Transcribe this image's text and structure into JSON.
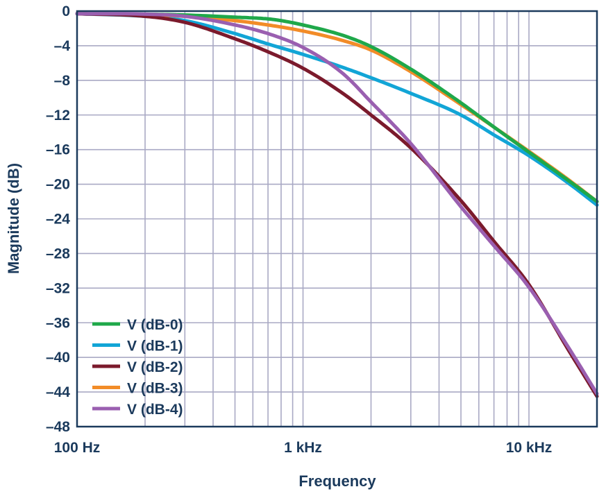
{
  "chart_data": {
    "type": "line",
    "title": "",
    "xlabel": "Frequency",
    "ylabel": "Magnitude (dB)",
    "xscale": "log",
    "xlim": [
      100,
      20000
    ],
    "ylim": [
      -48,
      0
    ],
    "grid": true,
    "x_ticks": [
      {
        "value": 100,
        "label": "100 Hz"
      },
      {
        "value": 1000,
        "label": "1 kHz"
      },
      {
        "value": 10000,
        "label": "10 kHz"
      }
    ],
    "y_ticks": [
      {
        "value": 0,
        "label": "0"
      },
      {
        "value": -4,
        "label": "–4"
      },
      {
        "value": -8,
        "label": "–8"
      },
      {
        "value": -12,
        "label": "–12"
      },
      {
        "value": -16,
        "label": "–16"
      },
      {
        "value": -20,
        "label": "–20"
      },
      {
        "value": -24,
        "label": "–24"
      },
      {
        "value": -28,
        "label": "–28"
      },
      {
        "value": -32,
        "label": "–32"
      },
      {
        "value": -36,
        "label": "–36"
      },
      {
        "value": -40,
        "label": "–40"
      },
      {
        "value": -44,
        "label": "–44"
      },
      {
        "value": -48,
        "label": "–48"
      }
    ],
    "legend_position": "bottom-left",
    "series": [
      {
        "name": "V (dB-0)",
        "color": "#1fa84a",
        "x": [
          100,
          200,
          300,
          500,
          700,
          800,
          1000,
          1500,
          2000,
          3000,
          5000,
          7000,
          10000,
          15000,
          20000
        ],
        "y": [
          -0.3,
          -0.35,
          -0.45,
          -0.7,
          -0.9,
          -1.1,
          -1.6,
          -2.8,
          -4.1,
          -6.7,
          -10.6,
          -13.4,
          -16.3,
          -19.6,
          -22.0
        ]
      },
      {
        "name": "V (dB-1)",
        "color": "#12a5d6",
        "x": [
          100,
          200,
          300,
          500,
          700,
          1000,
          1500,
          2000,
          3000,
          5000,
          7000,
          10000,
          15000,
          20000
        ],
        "y": [
          -0.3,
          -0.6,
          -1.1,
          -2.6,
          -3.8,
          -5.0,
          -6.5,
          -7.7,
          -9.5,
          -12.0,
          -14.3,
          -16.7,
          -19.9,
          -22.4
        ]
      },
      {
        "name": "V (dB-2)",
        "color": "#7b1a2c",
        "x": [
          100,
          200,
          300,
          500,
          700,
          1000,
          1500,
          2000,
          3000,
          5000,
          7000,
          10000,
          15000,
          20000
        ],
        "y": [
          -0.3,
          -0.6,
          -1.3,
          -3.2,
          -4.7,
          -6.6,
          -9.5,
          -12.0,
          -15.8,
          -21.9,
          -26.6,
          -31.6,
          -39.2,
          -44.5
        ]
      },
      {
        "name": "V (dB-3)",
        "color": "#f28c28",
        "x": [
          100,
          200,
          300,
          500,
          700,
          1000,
          1500,
          2000,
          3000,
          5000,
          7000,
          10000,
          15000,
          20000
        ],
        "y": [
          -0.3,
          -0.4,
          -0.6,
          -1.1,
          -1.6,
          -2.3,
          -3.4,
          -4.5,
          -7.0,
          -10.8,
          -13.4,
          -16.2,
          -19.5,
          -22.0
        ]
      },
      {
        "name": "V (dB-4)",
        "color": "#9a5fb0",
        "x": [
          100,
          200,
          300,
          500,
          700,
          1000,
          1500,
          2000,
          3000,
          5000,
          7000,
          10000,
          15000,
          20000
        ],
        "y": [
          -0.3,
          -0.35,
          -0.6,
          -1.6,
          -2.6,
          -4.2,
          -7.2,
          -10.5,
          -15.3,
          -22.6,
          -27.1,
          -31.9,
          -38.9,
          -44.2
        ]
      }
    ]
  }
}
